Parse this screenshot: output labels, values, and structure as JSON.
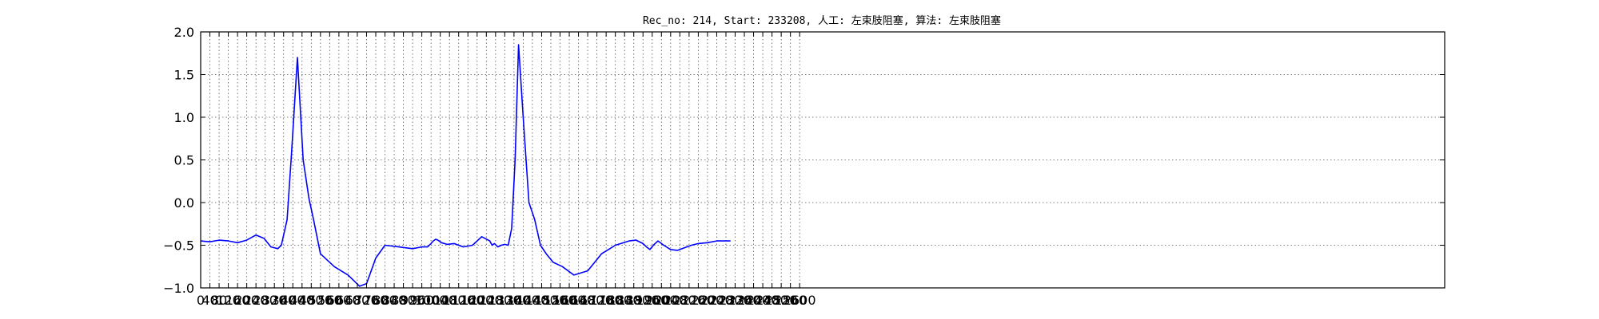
{
  "chart_data": {
    "type": "line",
    "title": "Rec_no: 214, Start: 233208, 人工: 左束肢阻塞, 算法: 左束肢阻塞",
    "xlabel": "",
    "ylabel": "",
    "xlim": [
      0,
      5400
    ],
    "ylim": [
      -1.0,
      2.0
    ],
    "yticks": [
      -1.0,
      -0.5,
      0.0,
      0.5,
      1.0,
      1.5,
      2.0
    ],
    "ytick_labels": [
      "−1.0",
      "−0.5",
      "0.0",
      "0.5",
      "1.0",
      "1.5",
      "2.0"
    ],
    "xticks": [
      0,
      40,
      80,
      120,
      160,
      200,
      240,
      280,
      320,
      360,
      400,
      440,
      480,
      520,
      560,
      600,
      640,
      680,
      720,
      760,
      800,
      840,
      880,
      920,
      960,
      1000,
      1040,
      1080,
      1120,
      1160,
      1200,
      1240,
      1280,
      1320,
      1360,
      1400,
      1440,
      1480,
      1520,
      1560,
      1600,
      1640,
      1680,
      1720,
      1760,
      1800,
      1840,
      1880,
      1920,
      1960,
      2000,
      2040,
      2080,
      2120,
      2160,
      2200,
      2240,
      2280,
      2320,
      2360,
      2400,
      2440,
      2480,
      2520,
      2560,
      2600
    ],
    "grid": true,
    "series": [
      {
        "color": "#0000ff",
        "x": [
          0,
          40,
          80,
          120,
          160,
          200,
          240,
          275,
          305,
          335,
          350,
          375,
          395,
          420,
          445,
          470,
          490,
          520,
          580,
          640,
          690,
          720,
          760,
          800,
          860,
          920,
          960,
          985,
          1000,
          1010,
          1020,
          1030,
          1045,
          1070,
          1100,
          1140,
          1180,
          1220,
          1255,
          1265,
          1275,
          1290,
          1305,
          1320,
          1335,
          1350,
          1365,
          1380,
          1400,
          1425,
          1450,
          1475,
          1500,
          1530,
          1570,
          1620,
          1680,
          1740,
          1800,
          1860,
          1890,
          1920,
          1935,
          1950,
          1965,
          1985,
          2010,
          2040,
          2070,
          2090,
          2110,
          2130,
          2160,
          2200,
          2240,
          2300
        ],
        "y": [
          -0.45,
          -0.46,
          -0.44,
          -0.45,
          -0.47,
          -0.44,
          -0.38,
          -0.42,
          -0.52,
          -0.54,
          -0.5,
          -0.2,
          0.6,
          1.7,
          0.5,
          0.05,
          -0.2,
          -0.6,
          -0.75,
          -0.85,
          -0.98,
          -0.95,
          -0.65,
          -0.5,
          -0.52,
          -0.54,
          -0.52,
          -0.52,
          -0.48,
          -0.45,
          -0.43,
          -0.44,
          -0.47,
          -0.49,
          -0.48,
          -0.52,
          -0.5,
          -0.4,
          -0.45,
          -0.5,
          -0.48,
          -0.52,
          -0.5,
          -0.49,
          -0.5,
          -0.3,
          0.5,
          1.85,
          1.0,
          0.0,
          -0.2,
          -0.5,
          -0.6,
          -0.7,
          -0.75,
          -0.85,
          -0.8,
          -0.6,
          -0.5,
          -0.45,
          -0.44,
          -0.48,
          -0.52,
          -0.55,
          -0.5,
          -0.45,
          -0.5,
          -0.55,
          -0.56,
          -0.54,
          -0.52,
          -0.5,
          -0.48,
          -0.47,
          -0.45,
          -0.45
        ]
      },
      {
        "color": "#ff0000",
        "x": [],
        "y": []
      }
    ]
  }
}
